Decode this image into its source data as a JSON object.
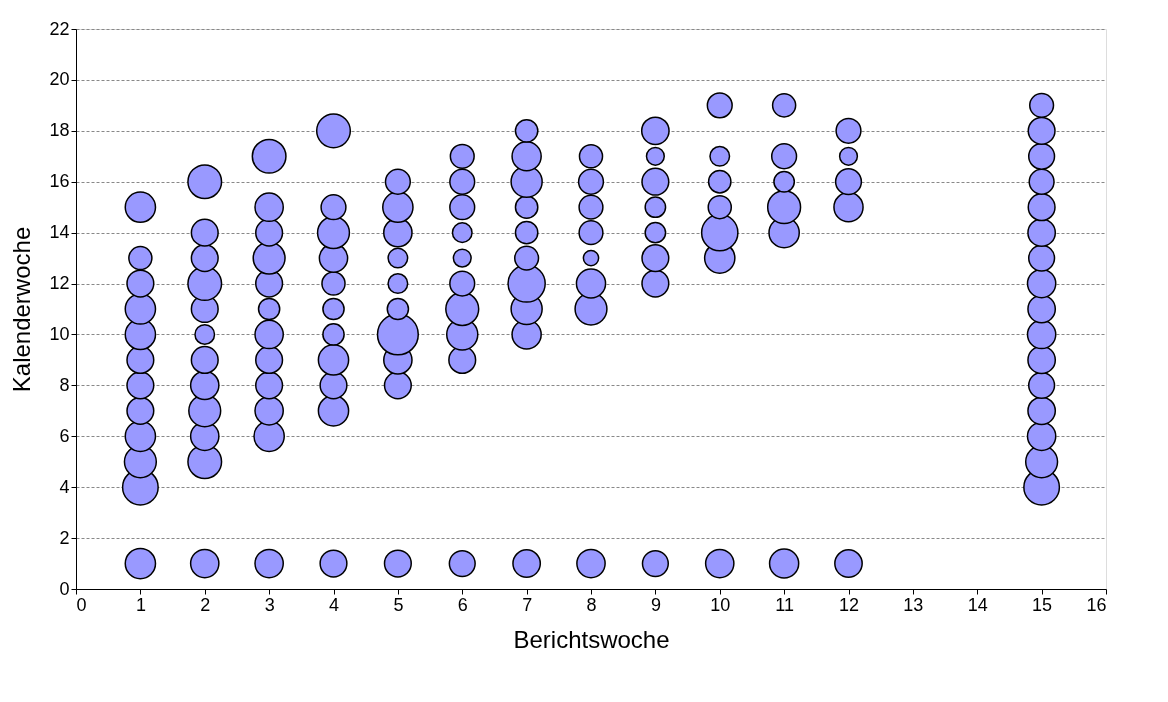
{
  "chart_data": {
    "type": "bubble",
    "xlabel": "Berichtswoche",
    "ylabel": "Kalenderwoche",
    "xlim": [
      0,
      16
    ],
    "xticks": [
      0,
      1,
      2,
      3,
      4,
      5,
      6,
      7,
      8,
      9,
      10,
      11,
      12,
      13,
      14,
      15,
      16
    ],
    "ylim": [
      0,
      22
    ],
    "yticks": [
      0,
      2,
      4,
      6,
      8,
      10,
      12,
      14,
      16,
      18,
      20,
      22
    ],
    "grid": "y",
    "legend": false,
    "series": [
      {
        "color": "#9999ff",
        "x": [
          1,
          1,
          1,
          1,
          1,
          1,
          1,
          1,
          1,
          1,
          1,
          1,
          2,
          2,
          2,
          2,
          2,
          2,
          2,
          2,
          2,
          2,
          2,
          2,
          3,
          3,
          3,
          3,
          3,
          3,
          3,
          3,
          3,
          3,
          3,
          3,
          4,
          4,
          4,
          4,
          4,
          4,
          4,
          4,
          4,
          4,
          4,
          5,
          5,
          5,
          5,
          5,
          5,
          5,
          5,
          5,
          5,
          6,
          6,
          6,
          6,
          6,
          6,
          6,
          6,
          6,
          6,
          7,
          7,
          7,
          7,
          7,
          7,
          7,
          7,
          7,
          7,
          8,
          8,
          8,
          8,
          8,
          8,
          8,
          8,
          9,
          9,
          9,
          9,
          9,
          9,
          9,
          9,
          10,
          10,
          10,
          10,
          10,
          10,
          10,
          11,
          11,
          11,
          11,
          11,
          11,
          12,
          12,
          12,
          12,
          12,
          15,
          15,
          15,
          15,
          15,
          15,
          15,
          15,
          15,
          15,
          15,
          15,
          15,
          15,
          15,
          15
        ],
        "values": [
          1,
          4,
          5,
          6,
          7,
          8,
          9,
          10,
          11,
          12,
          13,
          15,
          1,
          5,
          6,
          7,
          8,
          9,
          10,
          11,
          12,
          13,
          14,
          16,
          1,
          6,
          7,
          8,
          9,
          10,
          11,
          12,
          13,
          14,
          15,
          17,
          1,
          7,
          8,
          9,
          10,
          11,
          12,
          13,
          14,
          15,
          18,
          1,
          8,
          9,
          10,
          11,
          12,
          13,
          14,
          15,
          16,
          1,
          9,
          10,
          11,
          12,
          13,
          14,
          15,
          16,
          17,
          1,
          10,
          11,
          12,
          13,
          14,
          15,
          16,
          17,
          18,
          1,
          11,
          12,
          13,
          14,
          15,
          16,
          17,
          1,
          12,
          13,
          14,
          15,
          16,
          17,
          18,
          1,
          13,
          14,
          15,
          16,
          17,
          19,
          1,
          14,
          15,
          16,
          17,
          19,
          1,
          15,
          16,
          17,
          18,
          4,
          5,
          6,
          7,
          8,
          9,
          10,
          11,
          12,
          13,
          14,
          15,
          16,
          17,
          18,
          19
        ],
        "sizes": [
          0.55,
          0.76,
          0.61,
          0.55,
          0.43,
          0.43,
          0.43,
          0.55,
          0.55,
          0.43,
          0.32,
          0.55,
          0.48,
          0.68,
          0.48,
          0.61,
          0.48,
          0.43,
          0.23,
          0.43,
          0.68,
          0.43,
          0.43,
          0.68,
          0.48,
          0.55,
          0.48,
          0.43,
          0.43,
          0.48,
          0.27,
          0.43,
          0.61,
          0.43,
          0.48,
          0.68,
          0.43,
          0.55,
          0.43,
          0.55,
          0.27,
          0.27,
          0.32,
          0.48,
          0.61,
          0.37,
          0.68,
          0.43,
          0.43,
          0.48,
          1,
          0.27,
          0.23,
          0.23,
          0.48,
          0.55,
          0.37,
          0.4,
          0.43,
          0.58,
          0.65,
          0.37,
          0.19,
          0.23,
          0.37,
          0.37,
          0.34,
          0.45,
          0.51,
          0.58,
          0.83,
          0.34,
          0.3,
          0.3,
          0.58,
          0.51,
          0.3,
          0.48,
          0.61,
          0.51,
          0.14,
          0.34,
          0.34,
          0.37,
          0.32,
          0.4,
          0.43,
          0.43,
          0.25,
          0.25,
          0.43,
          0.19,
          0.45,
          0.48,
          0.55,
          0.79,
          0.32,
          0.3,
          0.23,
          0.37,
          0.51,
          0.55,
          0.65,
          0.25,
          0.37,
          0.32,
          0.45,
          0.51,
          0.4,
          0.19,
          0.37,
          0.76,
          0.61,
          0.48,
          0.45,
          0.4,
          0.45,
          0.48,
          0.45,
          0.48,
          0.4,
          0.45,
          0.43,
          0.37,
          0.4,
          0.43,
          0.34
        ]
      }
    ]
  }
}
